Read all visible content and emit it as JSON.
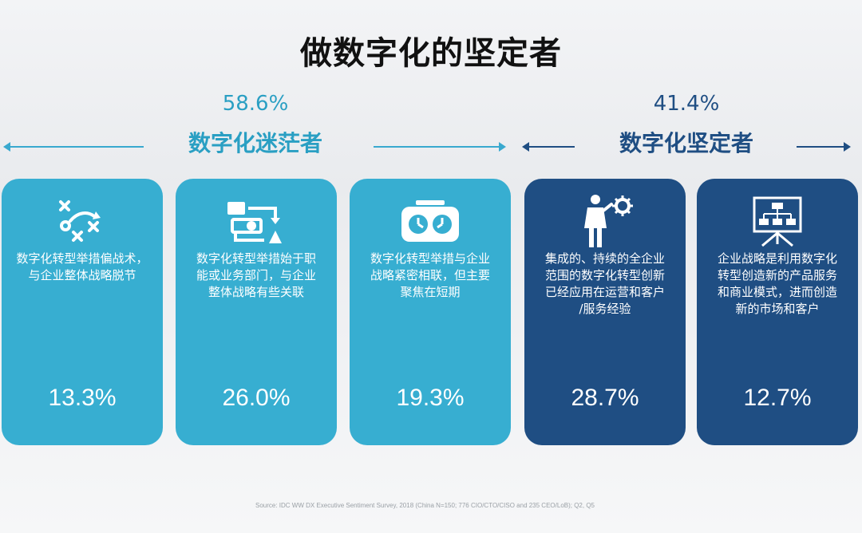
{
  "title": "做数字化的坚定者",
  "groups": {
    "wandering": {
      "percent": "58.6%",
      "name": "数字化迷茫者"
    },
    "determined": {
      "percent": "41.4%",
      "name": "数字化坚定者"
    }
  },
  "cards": [
    {
      "icon": "play-strategy-icon",
      "description": "数字化转型举措偏战术，\n与企业整体战略脱节",
      "value": "13.3%"
    },
    {
      "icon": "department-flow-icon",
      "description": "数字化转型举措始于职\n能或业务部门，与企业\n整体战略有些关联",
      "value": "26.0%"
    },
    {
      "icon": "stopwatch-icon",
      "description": "数字化转型举措与企业\n战略紧密相联，但主要\n聚焦在短期",
      "value": "19.3%"
    },
    {
      "icon": "businessman-gear-icon",
      "description": "集成的、持续的全企业\n范围的数字化转型创新\n已经应用在运营和客户\n/服务经验",
      "value": "28.7%"
    },
    {
      "icon": "org-chart-board-icon",
      "description": "企业战略是利用数字化\n转型创造新的产品服务\n和商业模式，进而创造\n新的市场和客户",
      "value": "12.7%"
    }
  ],
  "source": "Source: IDC WW DX Executive Sentiment Survey, 2018 (China N=150; 776 CIO/CTO/CISO and 235 CEO/LoB); Q2, Q5",
  "colors": {
    "light_card": "#37aed1",
    "dark_card": "#1f4e83",
    "title_text": "#111111"
  }
}
